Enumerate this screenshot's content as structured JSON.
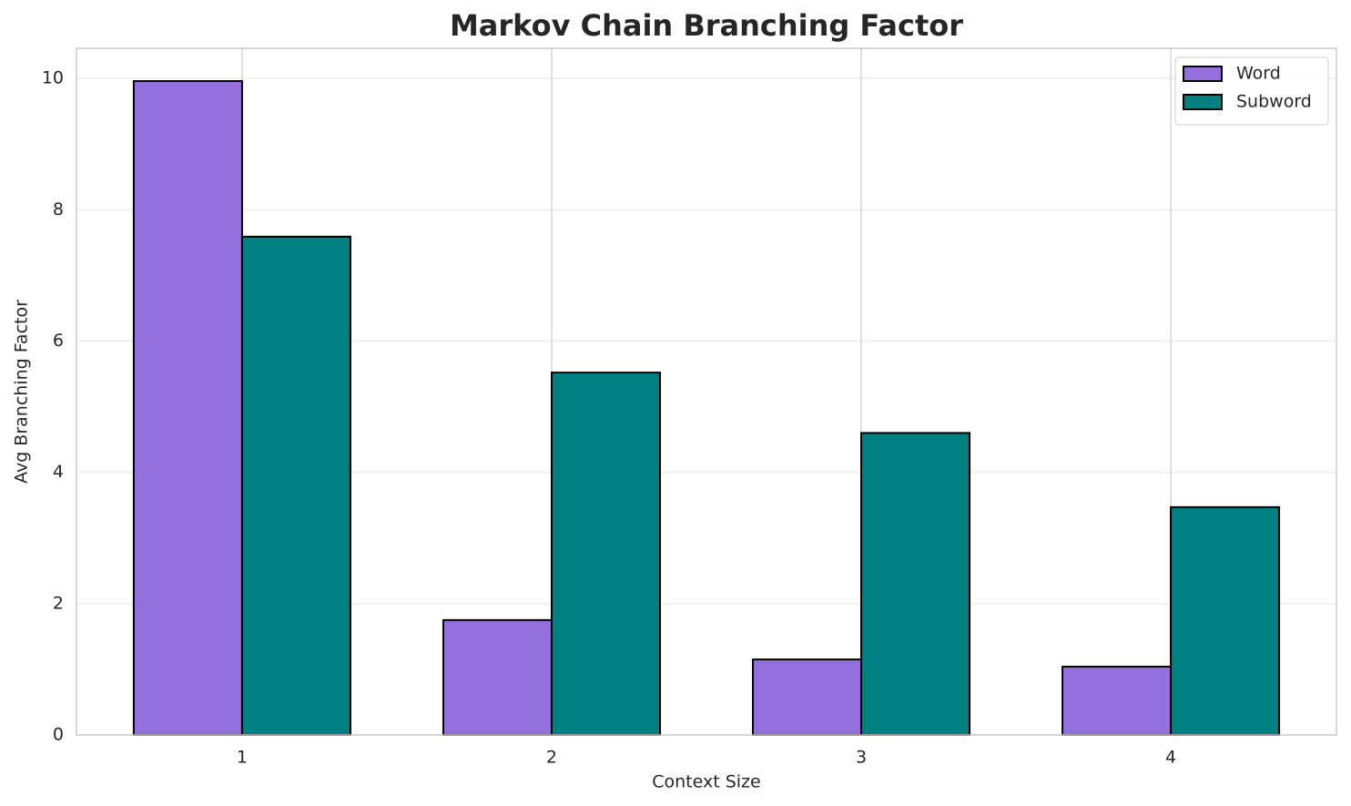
{
  "chart_data": {
    "type": "bar",
    "title": "Markov Chain Branching Factor",
    "x_label": "Context Size",
    "y_label": "Avg Branching Factor",
    "categories": [
      "1",
      "2",
      "3",
      "4"
    ],
    "series": [
      {
        "name": "Word",
        "color": "#9370db",
        "values": [
          9.96,
          1.75,
          1.15,
          1.04
        ]
      },
      {
        "name": "Subword",
        "color": "#008080",
        "values": [
          7.59,
          5.52,
          4.6,
          3.47
        ]
      }
    ],
    "ylim": [
      0,
      10.46
    ],
    "yticks": [
      0,
      2,
      4,
      6,
      8,
      10
    ],
    "grid": true,
    "legend": "upper right"
  }
}
